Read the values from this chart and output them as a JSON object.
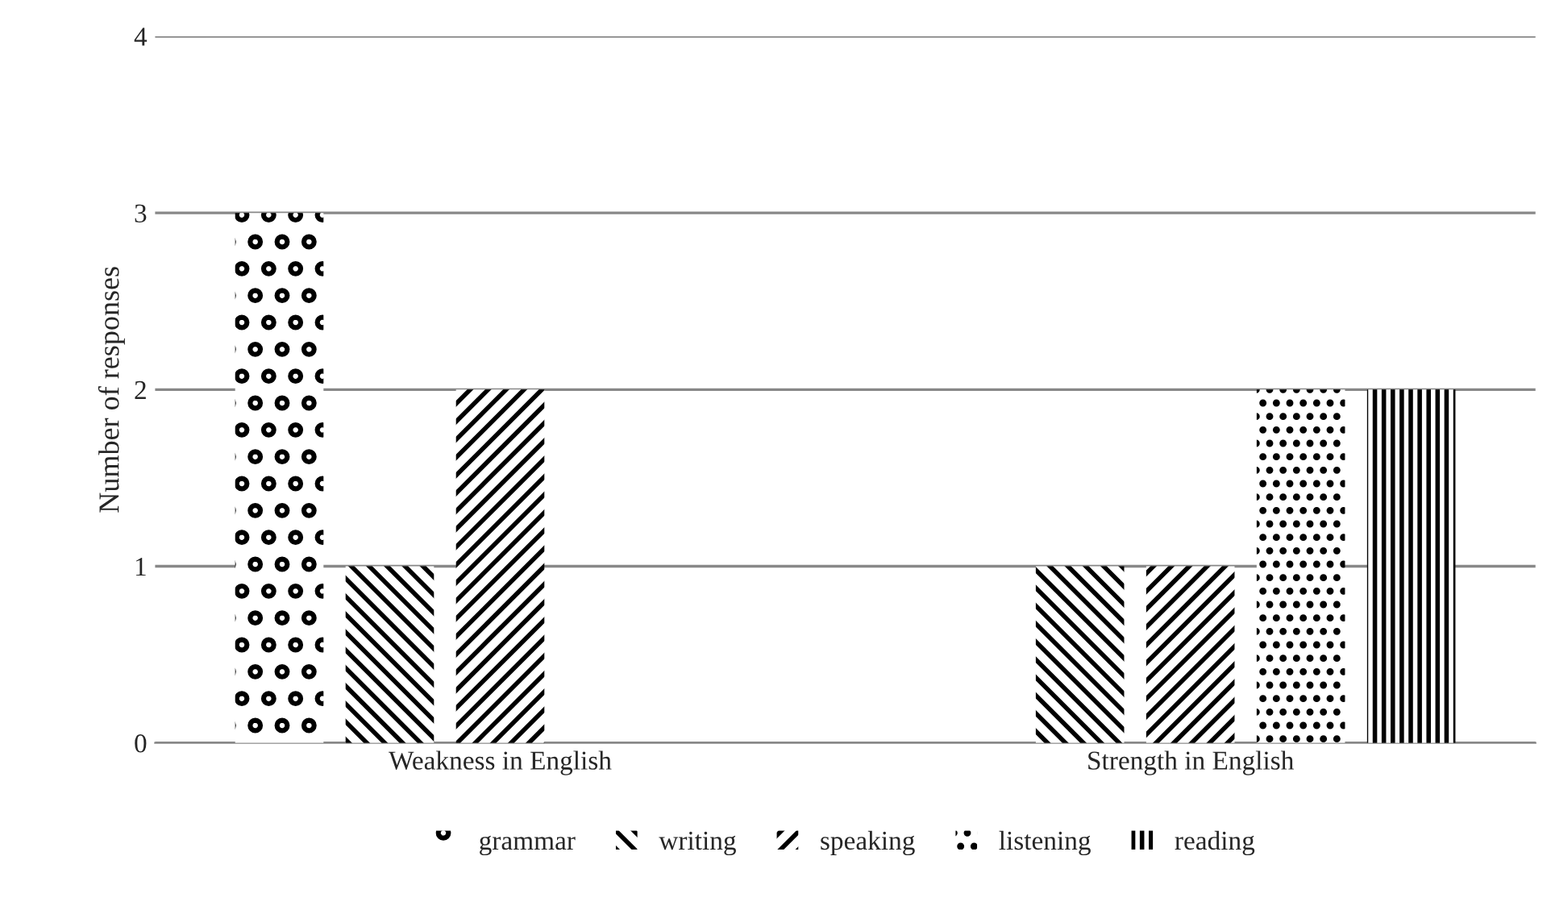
{
  "chart_data": {
    "type": "bar",
    "ylabel": "Number of responses",
    "categories": [
      "Weakness in English",
      "Strength in English"
    ],
    "series": [
      {
        "name": "grammar",
        "color": "#000000",
        "values": [
          3,
          0
        ]
      },
      {
        "name": "writing",
        "color": "#000000",
        "values": [
          1,
          1
        ]
      },
      {
        "name": "speaking",
        "color": "#000000",
        "values": [
          2,
          1
        ]
      },
      {
        "name": "listening",
        "color": "#000000",
        "values": [
          0,
          2
        ]
      },
      {
        "name": "reading",
        "color": "#000000",
        "values": [
          0,
          2
        ]
      }
    ],
    "ylim": [
      0,
      4
    ],
    "yticks": [
      0,
      1,
      2,
      3,
      4
    ],
    "grid": "y",
    "legend": "bottom"
  }
}
